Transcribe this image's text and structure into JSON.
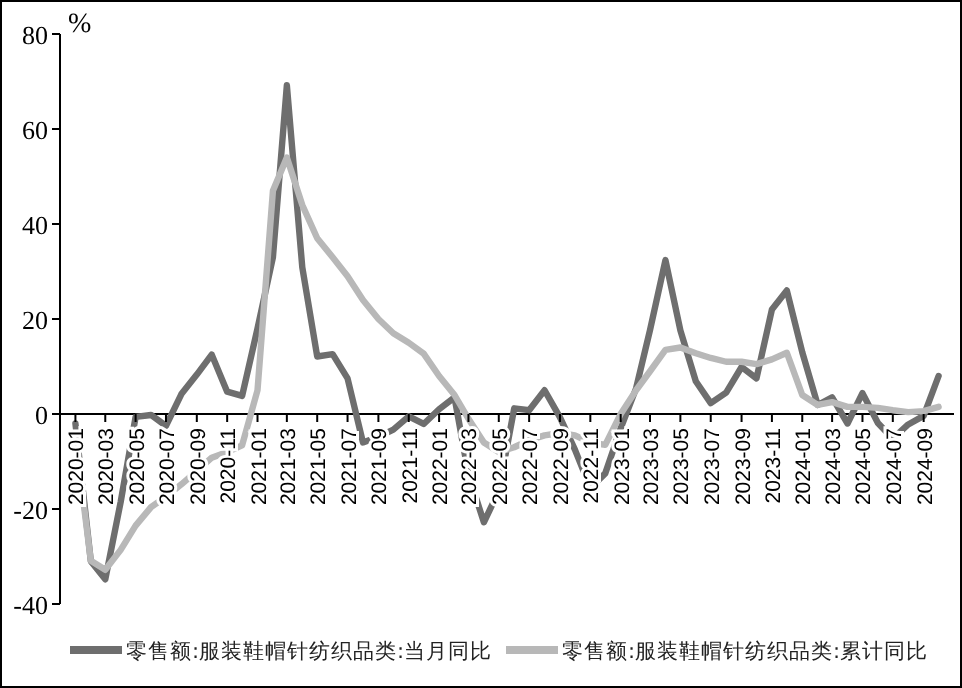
{
  "chart_data": {
    "type": "line",
    "ylabel": "%",
    "x": [
      "2020-01",
      "2020-02",
      "2020-03",
      "2020-04",
      "2020-05",
      "2020-06",
      "2020-07",
      "2020-08",
      "2020-09",
      "2020-10",
      "2020-11",
      "2020-12",
      "2021-01",
      "2021-02",
      "2021-03",
      "2021-04",
      "2021-05",
      "2021-06",
      "2021-07",
      "2021-08",
      "2021-09",
      "2021-10",
      "2021-11",
      "2021-12",
      "2022-01",
      "2022-02",
      "2022-03",
      "2022-04",
      "2022-05",
      "2022-06",
      "2022-07",
      "2022-08",
      "2022-09",
      "2022-10",
      "2022-11",
      "2022-12",
      "2023-01",
      "2023-02",
      "2023-03",
      "2023-04",
      "2023-05",
      "2023-06",
      "2023-07",
      "2023-08",
      "2023-09",
      "2023-10",
      "2023-11",
      "2023-12",
      "2024-01",
      "2024-02",
      "2024-03",
      "2024-04",
      "2024-05",
      "2024-06",
      "2024-07",
      "2024-08",
      "2024-09",
      "2024-10"
    ],
    "series": [
      {
        "name": "零售额:服装鞋帽针纺织品类:当月同比",
        "color": "#6e6e6e",
        "values": [
          -2,
          -31,
          -34.8,
          -18.5,
          -0.6,
          -0.2,
          -2.5,
          4.2,
          8.3,
          12.5,
          4.7,
          3.8,
          18,
          33,
          69.2,
          30.9,
          12.1,
          12.6,
          7.5,
          -6,
          -4.8,
          -3.3,
          -0.5,
          -2.1,
          1,
          3.5,
          -12.7,
          -22.8,
          -16.2,
          1.2,
          0.8,
          5,
          -0.7,
          -7.5,
          -15.6,
          -12.5,
          -3,
          5.4,
          17.7,
          32.4,
          17.6,
          6.9,
          2.3,
          4.5,
          9.9,
          7.5,
          22,
          26,
          13,
          1.9,
          3.5,
          -2,
          4.4,
          -1.9,
          -5.2,
          -2.2,
          -0.4,
          8
        ]
      },
      {
        "name": "零售额:服装鞋帽针纺织品类:累计同比",
        "color": "#b8b8b8",
        "values": [
          -5,
          -30.9,
          -32.8,
          -28.6,
          -23.5,
          -19.6,
          -17.4,
          -14.8,
          -12,
          -9.2,
          -8,
          -6.6,
          5,
          47,
          54,
          44,
          37,
          33,
          29,
          24,
          20,
          17,
          15,
          12.7,
          8,
          4,
          -1,
          -6,
          -8,
          -7,
          -5.5,
          -4.5,
          -4,
          -4.5,
          -6,
          -6.5,
          0,
          5,
          9,
          13.5,
          14,
          12.8,
          11.8,
          11,
          11,
          10.5,
          11.5,
          12.9,
          4,
          1.9,
          2.5,
          1.5,
          1.5,
          1.3,
          0.8,
          0.4,
          0.6,
          1.5
        ]
      }
    ],
    "xlim": [
      "2019-12",
      "2024-11"
    ],
    "xticks": [
      "2020-01",
      "2020-03",
      "2020-05",
      "2020-07",
      "2020-09",
      "2020-11",
      "2021-01",
      "2021-03",
      "2021-05",
      "2021-07",
      "2021-09",
      "2021-11",
      "2022-01",
      "2022-03",
      "2022-05",
      "2022-07",
      "2022-09",
      "2022-11",
      "2023-01",
      "2023-03",
      "2023-05",
      "2023-07",
      "2023-09",
      "2023-11",
      "2024-01",
      "2024-03",
      "2024-05",
      "2024-07",
      "2024-09"
    ],
    "ylim": [
      -40,
      80
    ],
    "yticks": [
      -40,
      -20,
      0,
      20,
      40,
      60,
      80
    ],
    "legend": "bottom",
    "grid": false
  }
}
